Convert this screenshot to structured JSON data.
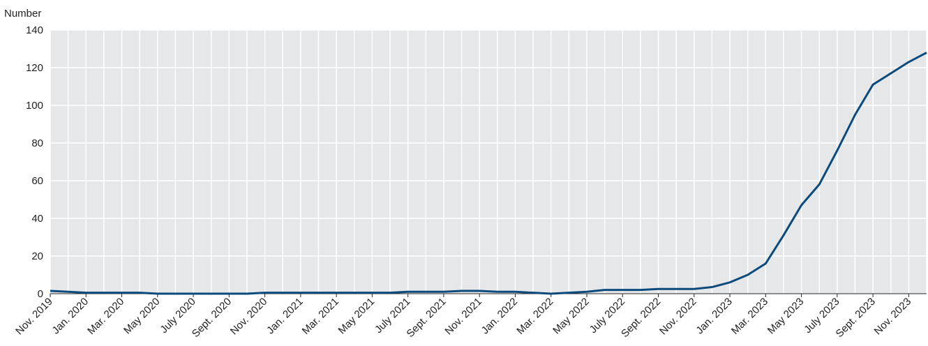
{
  "chart_data": {
    "type": "line",
    "ylabel": "Number",
    "categories": [
      "Nov. 2019",
      null,
      "Jan. 2020",
      null,
      "Mar. 2020",
      null,
      "May 2020",
      null,
      "July 2020",
      null,
      "Sept. 2020",
      null,
      "Nov. 2020",
      null,
      "Jan. 2021",
      null,
      "Mar. 2021",
      null,
      "May 2021",
      null,
      "July 2021",
      null,
      "Sept. 2021",
      null,
      "Nov. 2021",
      null,
      "Jan. 2022",
      null,
      "Mar. 2022",
      null,
      "May 2022",
      null,
      "July 2022",
      null,
      "Sept. 2022",
      null,
      "Nov. 2022",
      null,
      "Jan. 2023",
      null,
      "Mar. 2023",
      null,
      "May 2023",
      null,
      "July 2023",
      null,
      "Sept. 2023",
      null,
      "Nov. 2023",
      null
    ],
    "series": [
      {
        "name": "Number",
        "color": "#0b4a7c",
        "values": [
          1.5,
          1,
          0.5,
          0.5,
          0.5,
          0.5,
          0,
          0,
          0,
          0,
          0,
          0,
          0.5,
          0.5,
          0.5,
          0.5,
          0.5,
          0.5,
          0.5,
          0.5,
          1,
          1,
          1,
          1.5,
          1.5,
          1,
          1,
          0.5,
          0,
          0.5,
          1,
          2,
          2,
          2,
          2.5,
          2.5,
          2.5,
          3.5,
          6,
          10,
          16,
          31,
          47,
          58,
          76,
          95,
          111,
          117,
          123,
          128
        ]
      }
    ],
    "ylim": [
      0,
      140
    ],
    "yticks": [
      0,
      20,
      40,
      60,
      80,
      100,
      120,
      140
    ],
    "grid": true
  }
}
